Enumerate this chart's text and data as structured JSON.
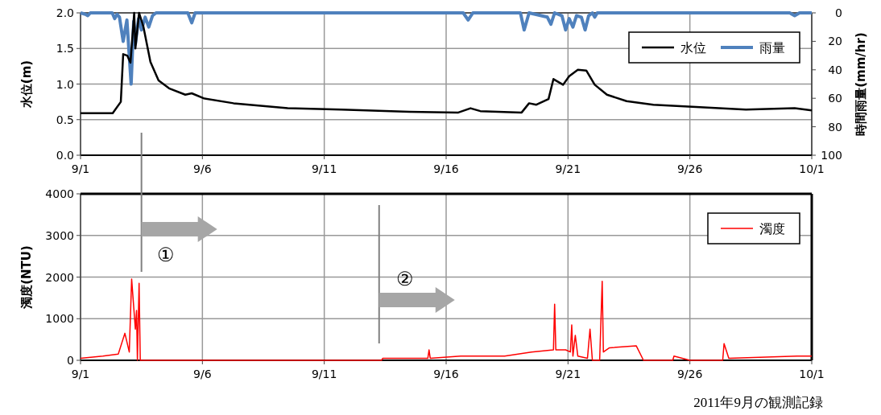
{
  "chart_data": [
    {
      "type": "line",
      "xlim": [
        "2011-09-01",
        "2011-10-01"
      ],
      "xticks": [
        {
          "value": "2011-09-01",
          "label": "9/1"
        },
        {
          "value": "2011-09-06",
          "label": "9/6"
        },
        {
          "value": "2011-09-11",
          "label": "9/11"
        },
        {
          "value": "2011-09-16",
          "label": "9/16"
        },
        {
          "value": "2011-09-21",
          "label": "9/21"
        },
        {
          "value": "2011-09-26",
          "label": "9/26"
        },
        {
          "value": "2011-10-01",
          "label": "10/1"
        }
      ],
      "ylim": [
        0,
        2
      ],
      "yticks": [
        {
          "value": 0,
          "label": "0.0"
        },
        {
          "value": 0.5,
          "label": "0.5"
        },
        {
          "value": 1,
          "label": "1.0"
        },
        {
          "value": 1.5,
          "label": "1.5"
        },
        {
          "value": 2,
          "label": "2.0"
        }
      ],
      "y2lim": [
        100,
        0
      ],
      "y2ticks": [
        0,
        20,
        40,
        60,
        80,
        100
      ],
      "ylabel": "水位(m)",
      "y2label": "時間雨量(mm/hr)",
      "grid": true,
      "legend": "top right",
      "series": [
        {
          "name": "水位",
          "color": "#000000",
          "x": [
            "2011-09-01T00:00",
            "2011-09-02T07:40",
            "2011-09-02T15:40",
            "2011-09-02T18:00",
            "2011-09-02T22:00",
            "2011-09-03T01:10",
            "2011-09-03T04:50",
            "2011-09-03T06:00",
            "2011-09-03T09:40",
            "2011-09-03T13:50",
            "2011-09-03T20:50",
            "2011-09-04T04:50",
            "2011-09-04T15:10",
            "2011-09-05T07:10",
            "2011-09-05T13:30",
            "2011-09-06T01:10",
            "2011-09-07T06:40",
            "2011-09-09T12:00",
            "2011-09-11T16:50",
            "2011-09-14T12:00",
            "2011-09-16T12:00",
            "2011-09-17T00:00",
            "2011-09-17T09:40",
            "2011-09-19T02:20",
            "2011-09-19T09:40",
            "2011-09-19T16:50",
            "2011-09-20T04:50",
            "2011-09-20T09:40",
            "2011-09-20T19:10",
            "2011-09-21T01:10",
            "2011-09-21T09:40",
            "2011-09-21T18:00",
            "2011-09-22T02:20",
            "2011-09-22T14:20",
            "2011-09-23T09:40",
            "2011-09-24T12:00",
            "2011-09-26T02:20",
            "2011-09-28T07:10",
            "2011-09-30T07:10",
            "2011-10-01T00:00"
          ],
          "values": [
            0.59,
            0.59,
            0.75,
            1.42,
            1.4,
            1.3,
            2.0,
            1.5,
            2.0,
            1.81,
            1.31,
            1.05,
            0.94,
            0.85,
            0.87,
            0.8,
            0.73,
            0.66,
            0.64,
            0.61,
            0.6,
            0.66,
            0.62,
            0.6,
            0.73,
            0.71,
            0.79,
            1.07,
            0.99,
            1.11,
            1.2,
            1.19,
            0.99,
            0.85,
            0.76,
            0.71,
            0.68,
            0.64,
            0.66,
            0.63
          ]
        },
        {
          "name": "雨量",
          "color": "#4f81bd",
          "axis": "y2",
          "x": [
            "2011-09-01T00:00",
            "2011-09-01T04:50",
            "2011-09-01T07:10",
            "2011-09-01T09:40",
            "2011-09-02T07:10",
            "2011-09-02T09:40",
            "2011-09-02T12:00",
            "2011-09-02T14:20",
            "2011-09-02T18:00",
            "2011-09-02T21:40",
            "2011-09-03T01:50",
            "2011-09-03T04:20",
            "2011-09-03T06:00",
            "2011-09-03T09:10",
            "2011-09-03T12:00",
            "2011-09-03T15:40",
            "2011-09-03T19:10",
            "2011-09-03T22:50",
            "2011-09-04T02:20",
            "2011-09-05T09:40",
            "2011-09-05T13:30",
            "2011-09-05T16:50",
            "2011-09-16T16:50",
            "2011-09-16T21:40",
            "2011-09-17T02:20",
            "2011-09-19T01:10",
            "2011-09-19T04:50",
            "2011-09-19T09:40",
            "2011-09-20T03:40",
            "2011-09-20T07:10",
            "2011-09-20T10:50",
            "2011-09-20T18:00",
            "2011-09-20T21:40",
            "2011-09-21T01:10",
            "2011-09-21T04:50",
            "2011-09-21T08:20",
            "2011-09-21T13:10",
            "2011-09-21T16:50",
            "2011-09-21T20:20",
            "2011-09-22T00:00",
            "2011-09-22T02:20",
            "2011-09-22T04:50",
            "2011-09-30T02:20",
            "2011-09-30T07:10",
            "2011-09-30T12:00",
            "2011-10-01T00:00"
          ],
          "values": [
            0,
            1,
            2,
            0,
            0,
            4,
            1,
            3,
            20,
            5,
            50,
            6,
            22,
            4,
            12,
            3,
            10,
            2,
            0,
            0,
            7,
            0,
            0,
            5,
            0,
            0,
            12,
            0,
            3,
            8,
            0,
            2,
            12,
            4,
            10,
            2,
            3,
            12,
            2,
            0,
            3,
            0,
            0,
            2,
            0,
            0
          ]
        }
      ]
    },
    {
      "type": "line",
      "xlim": [
        "2011-09-01",
        "2011-10-01"
      ],
      "xticks": [
        {
          "value": "2011-09-01",
          "label": "9/1"
        },
        {
          "value": "2011-09-06",
          "label": "9/6"
        },
        {
          "value": "2011-09-11",
          "label": "9/11"
        },
        {
          "value": "2011-09-16",
          "label": "9/16"
        },
        {
          "value": "2011-09-21",
          "label": "9/21"
        },
        {
          "value": "2011-09-26",
          "label": "9/26"
        },
        {
          "value": "2011-10-01",
          "label": "10/1"
        }
      ],
      "ylim": [
        0,
        4000
      ],
      "yticks": [
        0,
        1000,
        2000,
        3000,
        4000
      ],
      "ylabel": "濁度(NTU)",
      "grid": true,
      "legend": "top right",
      "ref_lines": [
        {
          "axis": "x",
          "value": "2011-09-03T12:00",
          "label": "①",
          "color": "#808080"
        },
        {
          "axis": "x",
          "value": "2011-09-13T06:00",
          "label": "②",
          "color": "#808080"
        }
      ],
      "annotations": [
        "2011年9月の観測記録"
      ],
      "series": [
        {
          "name": "濁度",
          "color": "#ff0000",
          "x": [
            "2011-09-01T00:00",
            "2011-09-01T22:00",
            "2011-09-02T13:10",
            "2011-09-02T19:40",
            "2011-09-03T00:00",
            "2011-09-03T02:20",
            "2011-09-03T06:00",
            "2011-09-03T07:10",
            "2011-09-03T08:00",
            "2011-09-03T09:40",
            "2011-09-03T10:50",
            "2011-09-13T08:20",
            "2011-09-13T09:40",
            "2011-09-15T06:00",
            "2011-09-15T07:10",
            "2011-09-15T08:20",
            "2011-09-16T14:20",
            "2011-09-18T09:40",
            "2011-09-19T12:00",
            "2011-09-20T09:40",
            "2011-09-20T10:50",
            "2011-09-20T12:00",
            "2011-09-20T21:40",
            "2011-09-21T02:20",
            "2011-09-21T03:40",
            "2011-09-21T04:50",
            "2011-09-21T07:10",
            "2011-09-21T09:40",
            "2011-09-21T19:10",
            "2011-09-21T21:40",
            "2011-09-22T00:00",
            "2011-09-22T07:10",
            "2011-09-22T09:40",
            "2011-09-22T10:50",
            "2011-09-22T16:50",
            "2011-09-23T19:10",
            "2011-09-24T02:20",
            "2011-09-25T07:10",
            "2011-09-25T08:20",
            "2011-09-26T00:00",
            "2011-09-27T08:20",
            "2011-09-27T09:40",
            "2011-09-27T14:20",
            "2011-09-30T09:40",
            "2011-10-01T00:00"
          ],
          "values": [
            50,
            100,
            150,
            650,
            200,
            1950,
            750,
            1200,
            0,
            1850,
            0,
            0,
            50,
            50,
            250,
            50,
            100,
            100,
            200,
            250,
            1350,
            250,
            250,
            200,
            850,
            100,
            600,
            100,
            50,
            750,
            0,
            0,
            1900,
            200,
            300,
            350,
            0,
            0,
            100,
            0,
            0,
            400,
            50,
            100,
            100
          ]
        }
      ]
    }
  ]
}
